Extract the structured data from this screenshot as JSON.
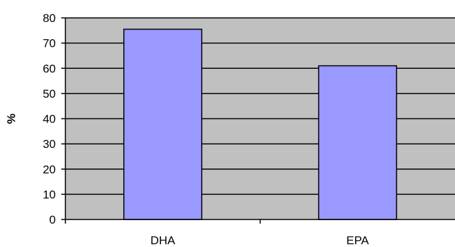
{
  "chart_data": {
    "type": "bar",
    "categories": [
      "DHA",
      "EPA"
    ],
    "values": [
      75.5,
      61
    ],
    "xlabel": "",
    "ylabel": "%",
    "ylim": [
      0,
      80
    ],
    "yticks": [
      "0",
      "10",
      "20",
      "30",
      "40",
      "50",
      "60",
      "70",
      "80"
    ],
    "grid": true,
    "legend": "none",
    "colors": {
      "plot_background": "#c0c0c0",
      "bar_fill": "#9999ff",
      "bar_stroke": "#000000",
      "gridline": "#000000",
      "axis": "#000000"
    }
  }
}
